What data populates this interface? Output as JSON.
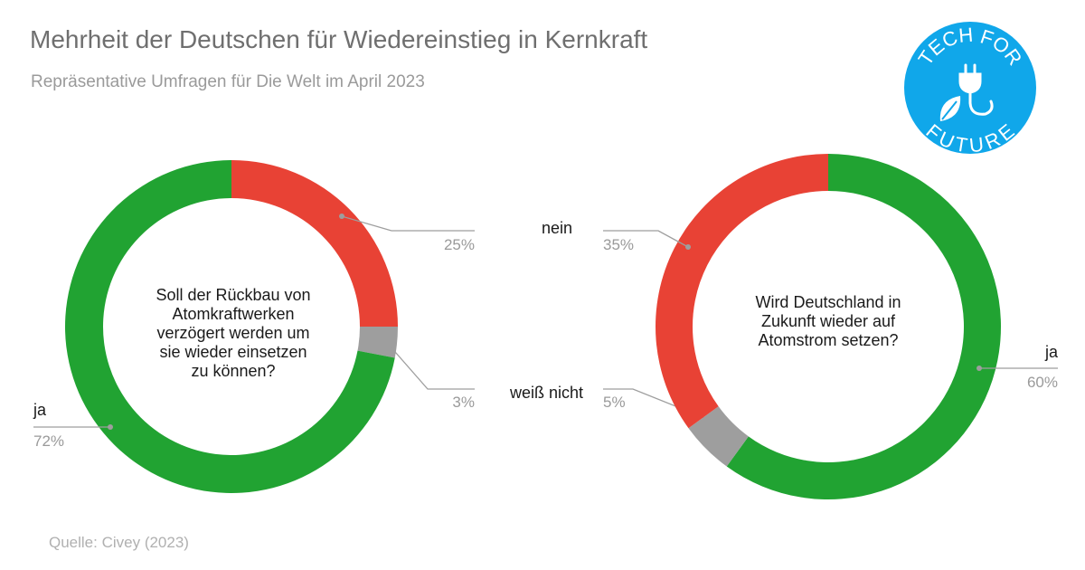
{
  "header": {
    "title": "Mehrheit der Deutschen für Wiedereinstieg in Kernkraft",
    "subtitle": "Repräsentative Umfragen für Die Welt im April 2023"
  },
  "footer": {
    "source": "Quelle: Civey (2023)"
  },
  "logo": {
    "line1": "TECH FOR",
    "line2": "FUTURE",
    "color": "#10a7ea"
  },
  "colors": {
    "ja": "#21a332",
    "nein": "#e84235",
    "weiss_nicht": "#9e9e9e"
  },
  "chart_data": [
    {
      "type": "pie",
      "donut": true,
      "center_text": [
        "Soll der Rückbau von",
        "Atomkraftwerken",
        "verzögert werden um",
        "sie wieder einsetzen",
        "zu können?"
      ],
      "slices": [
        {
          "key": "nein",
          "label": "nein",
          "value": 25,
          "value_label": "25%"
        },
        {
          "key": "weiss_nicht",
          "label": "weiß nicht",
          "value": 3,
          "value_label": "3%"
        },
        {
          "key": "ja",
          "label": "ja",
          "value": 72,
          "value_label": "72%"
        }
      ]
    },
    {
      "type": "pie",
      "donut": true,
      "center_text": [
        "Wird Deutschland in",
        "Zukunft wieder auf",
        "Atomstrom setzen?"
      ],
      "slices": [
        {
          "key": "ja",
          "label": "ja",
          "value": 60,
          "value_label": "60%"
        },
        {
          "key": "weiss_nicht",
          "label": "weiß nicht",
          "value": 5,
          "value_label": "5%"
        },
        {
          "key": "nein",
          "label": "nein",
          "value": 35,
          "value_label": "35%"
        }
      ]
    }
  ]
}
